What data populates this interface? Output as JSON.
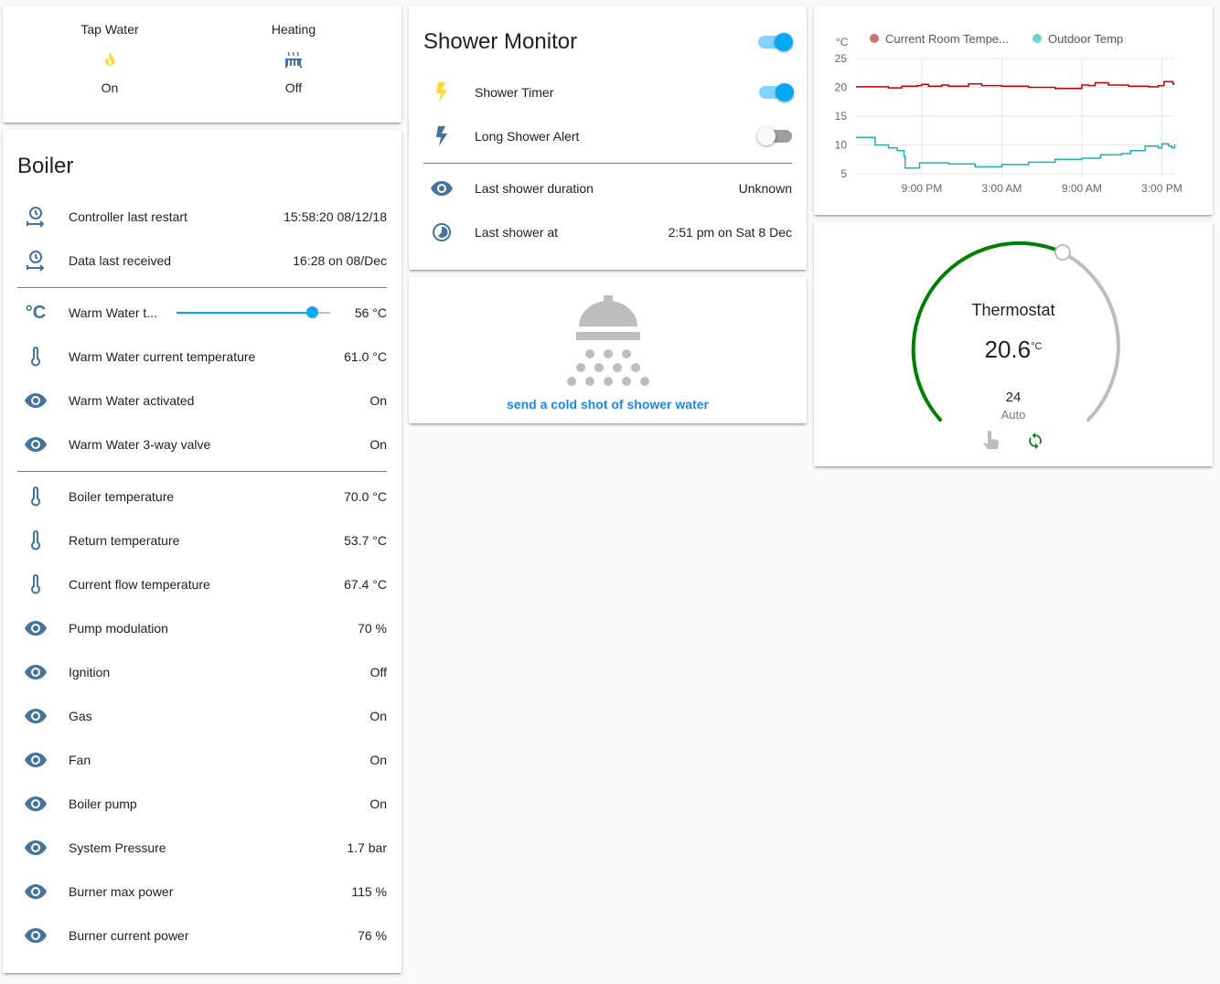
{
  "glance": {
    "items": [
      {
        "name": "Tap Water",
        "icon": "fire-icon",
        "state": "On"
      },
      {
        "name": "Heating",
        "icon": "radiator-icon",
        "state": "Off"
      }
    ]
  },
  "boiler": {
    "title": "Boiler",
    "rows1": [
      {
        "icon": "clock-restart-icon",
        "label": "Controller last restart",
        "value": "15:58:20 08/12/18"
      },
      {
        "icon": "clock-restart-icon",
        "label": "Data last received",
        "value": "16:28 on 08/Dec"
      }
    ],
    "slider": {
      "icon": "celsius-icon",
      "label": "Warm Water t...",
      "value": "56 °C",
      "level": 0.88
    },
    "rows2": [
      {
        "icon": "thermometer-icon",
        "label": "Warm Water current temperature",
        "value": "61.0 °C"
      },
      {
        "icon": "eye-icon",
        "label": "Warm Water activated",
        "value": "On"
      },
      {
        "icon": "eye-icon",
        "label": "Warm Water 3-way valve",
        "value": "On"
      }
    ],
    "rows3": [
      {
        "icon": "thermometer-icon",
        "label": "Boiler temperature",
        "value": "70.0 °C"
      },
      {
        "icon": "thermometer-icon",
        "label": "Return temperature",
        "value": "53.7 °C"
      },
      {
        "icon": "thermometer-icon",
        "label": "Current flow temperature",
        "value": "67.4 °C"
      },
      {
        "icon": "eye-icon",
        "label": "Pump modulation",
        "value": "70 %"
      },
      {
        "icon": "eye-icon",
        "label": "Ignition",
        "value": "Off"
      },
      {
        "icon": "eye-icon",
        "label": "Gas",
        "value": "On"
      },
      {
        "icon": "eye-icon",
        "label": "Fan",
        "value": "On"
      },
      {
        "icon": "eye-icon",
        "label": "Boiler pump",
        "value": "On"
      },
      {
        "icon": "eye-icon",
        "label": "System Pressure",
        "value": "1.7 bar"
      },
      {
        "icon": "eye-icon",
        "label": "Burner max power",
        "value": "115 %"
      },
      {
        "icon": "eye-icon",
        "label": "Burner current power",
        "value": "76 %"
      }
    ]
  },
  "shower": {
    "title": "Shower Monitor",
    "master_on": true,
    "toggles": [
      {
        "icon": "flash-icon",
        "icon_color": "#fdd835",
        "label": "Shower Timer",
        "on": true
      },
      {
        "icon": "flash-icon",
        "icon_color": "#44739e",
        "label": "Long Shower Alert",
        "on": false
      }
    ],
    "rows": [
      {
        "icon": "eye-icon",
        "label": "Last shower duration",
        "value": "Unknown"
      },
      {
        "icon": "clock-icon",
        "label": "Last shower at",
        "value": "2:51 pm on Sat 8 Dec"
      }
    ]
  },
  "cold_shot": {
    "icon": "shower-icon",
    "label": "send a cold shot of shower water"
  },
  "chart_data": {
    "type": "line",
    "ylabel": "°C",
    "ylim": [
      5,
      25
    ],
    "yticks": [
      "25",
      "20",
      "15",
      "10",
      "5"
    ],
    "xticks": [
      "9:00 PM",
      "3:00 AM",
      "9:00 AM",
      "3:00 PM"
    ],
    "grid": true,
    "legend": "top",
    "series": [
      {
        "name": "Current Room Tempe...",
        "color": "#c00000",
        "legend_color": "#d47171",
        "points": [
          [
            "16:04",
            20.1
          ],
          [
            "17:30",
            20.1
          ],
          [
            "18:30",
            19.9
          ],
          [
            "19:30",
            20.2
          ],
          [
            "20:40",
            20.3
          ],
          [
            "21:00",
            20.5
          ],
          [
            "21:30",
            20.2
          ],
          [
            "22:00",
            20.2
          ],
          [
            "22:30",
            20.4
          ],
          [
            "23:00",
            20.2
          ],
          [
            "0:30",
            20.6
          ],
          [
            "1:30",
            20.3
          ],
          [
            "3:00",
            20.2
          ],
          [
            "5:00",
            20.0
          ],
          [
            "7:00",
            19.8
          ],
          [
            "8:30",
            19.8
          ],
          [
            "9:00",
            20.4
          ],
          [
            "9:30",
            20.3
          ],
          [
            "10:00",
            20.8
          ],
          [
            "11:00",
            20.4
          ],
          [
            "12:30",
            20.2
          ],
          [
            "14:00",
            20.1
          ],
          [
            "14:45",
            20.3
          ],
          [
            "15:10",
            21.0
          ],
          [
            "15:35",
            21.0
          ],
          [
            "15:50",
            20.6
          ],
          [
            "15:58",
            20.6
          ]
        ]
      },
      {
        "name": "Outdoor Temp",
        "color": "#1fb3b3",
        "legend_color": "#71d1d1",
        "points": [
          [
            "16:04",
            11.3
          ],
          [
            "17:30",
            10.0
          ],
          [
            "18:30",
            9.5
          ],
          [
            "19:10",
            9.0
          ],
          [
            "19:40",
            8.0
          ],
          [
            "19:45",
            6.0
          ],
          [
            "20:40",
            6.0
          ],
          [
            "20:50",
            6.9
          ],
          [
            "22:00",
            6.9
          ],
          [
            "23:00",
            6.7
          ],
          [
            "1:00",
            6.2
          ],
          [
            "2:00",
            6.2
          ],
          [
            "3:00",
            6.6
          ],
          [
            "5:00",
            7.0
          ],
          [
            "7:00",
            7.5
          ],
          [
            "8:00",
            7.5
          ],
          [
            "9:00",
            7.7
          ],
          [
            "10:20",
            7.8
          ],
          [
            "10:25",
            8.3
          ],
          [
            "12:00",
            8.5
          ],
          [
            "12:40",
            9.0
          ],
          [
            "13:30",
            9.0
          ],
          [
            "13:45",
            9.8
          ],
          [
            "14:45",
            9.5
          ],
          [
            "15:00",
            10.2
          ],
          [
            "15:30",
            9.8
          ],
          [
            "15:45",
            9.5
          ],
          [
            "15:55",
            9.6
          ],
          [
            "15:58",
            10.1
          ]
        ]
      }
    ]
  },
  "thermostat": {
    "name": "Thermostat",
    "current": "20.6",
    "unit": "°C",
    "target": "24",
    "mode": "Auto",
    "accent": "#008000",
    "icons": [
      "hand-pointer-icon",
      "sync-icon"
    ]
  }
}
